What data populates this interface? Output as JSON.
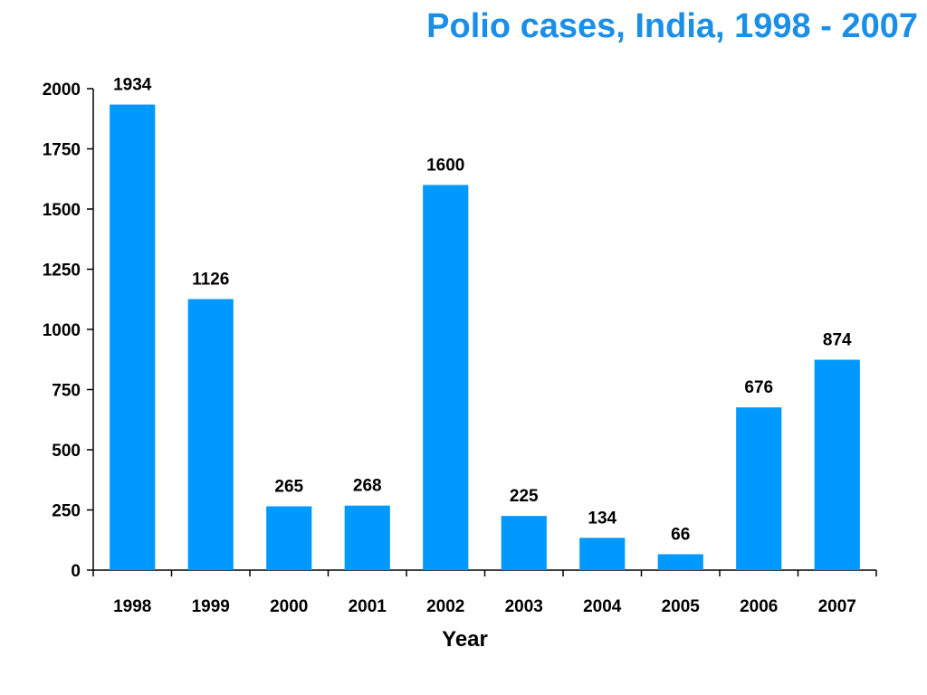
{
  "chart_data": {
    "type": "bar",
    "title": "Polio cases, India, 1998 - 2007",
    "xlabel": "Year",
    "ylabel": "",
    "categories": [
      "1998",
      "1999",
      "2000",
      "2001",
      "2002",
      "2003",
      "2004",
      "2005",
      "2006",
      "2007"
    ],
    "values": [
      1934,
      1126,
      265,
      268,
      1600,
      225,
      134,
      66,
      676,
      874
    ],
    "data_labels": [
      "1934",
      "1126",
      "265",
      "268",
      "1600",
      "225",
      "134",
      "66",
      "676",
      "874"
    ],
    "yticks": [
      "0",
      "250",
      "500",
      "750",
      "1000",
      "1250",
      "1500",
      "1750",
      "2000"
    ],
    "ylim": [
      0,
      2000
    ],
    "grid": false,
    "legend": "none",
    "colors": {
      "bar": "#0099ff",
      "title": "#1b8fe8"
    }
  }
}
